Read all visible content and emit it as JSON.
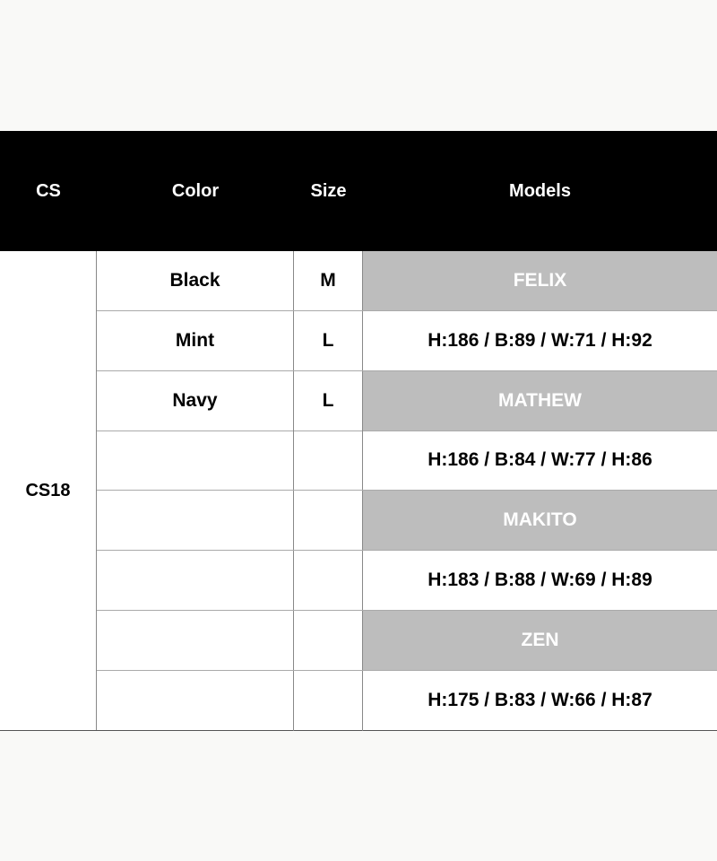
{
  "header": {
    "cs": "CS",
    "color": "Color",
    "size": "Size",
    "models": "Models"
  },
  "cs_value": "CS18",
  "colors": {
    "grey_cell": "#bdbdbd",
    "header_bg": "#000000"
  },
  "rows": [
    {
      "color": "Black",
      "size": "M",
      "model": "FELIX",
      "type": "name"
    },
    {
      "color": "Mint",
      "size": "L",
      "model": "H:186 / B:89 / W:71 / H:92",
      "type": "measure"
    },
    {
      "color": "Navy",
      "size": "L",
      "model": "MATHEW",
      "type": "name"
    },
    {
      "color": "",
      "size": "",
      "model": "H:186 / B:84 / W:77 / H:86",
      "type": "measure"
    },
    {
      "color": "",
      "size": "",
      "model": "MAKITO",
      "type": "name"
    },
    {
      "color": "",
      "size": "",
      "model": "H:183 / B:88 / W:69 / H:89",
      "type": "measure"
    },
    {
      "color": "",
      "size": "",
      "model": "ZEN",
      "type": "name"
    },
    {
      "color": "",
      "size": "",
      "model": "H:175 / B:83 / W:66 / H:87",
      "type": "measure"
    }
  ]
}
